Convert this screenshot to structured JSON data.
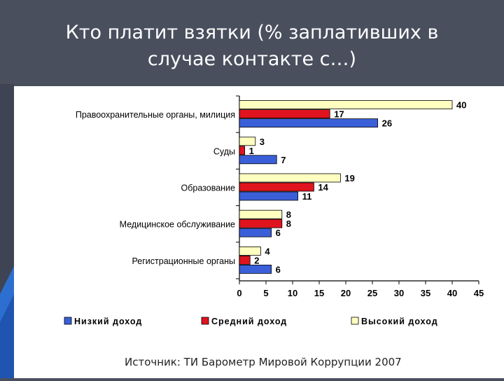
{
  "slide": {
    "title_line1": "Кто платит взятки (% заплативших в",
    "title_line2": "случае контакте с…)",
    "source": "Источник: ТИ Барометр Мировой Коррупции 2007"
  },
  "colors": {
    "background": "#4a4f5e",
    "low": "#3a5fd9",
    "mid": "#e0141e",
    "high": "#ffffc0"
  },
  "chart_data": {
    "type": "bar",
    "orientation": "horizontal",
    "categories": [
      "Правоохранительные органы, милиция",
      "Суды",
      "Образование",
      "Медицинское обслуживание",
      "Регистрационные органы"
    ],
    "series": [
      {
        "name": "Высокий доход",
        "color": "#ffffc0",
        "values": [
          40,
          3,
          19,
          8,
          4
        ]
      },
      {
        "name": "Средний доход",
        "color": "#e0141e",
        "values": [
          17,
          1,
          14,
          8,
          2
        ]
      },
      {
        "name": "Низкий доход",
        "color": "#3a5fd9",
        "values": [
          26,
          7,
          11,
          6,
          6
        ]
      }
    ],
    "legend_order": [
      "Низкий доход",
      "Средний доход",
      "Высокий доход"
    ],
    "xlim": [
      0,
      45
    ],
    "xticks": [
      0,
      5,
      10,
      15,
      20,
      25,
      30,
      35,
      40,
      45
    ],
    "legend_position": "bottom",
    "grid": false
  }
}
